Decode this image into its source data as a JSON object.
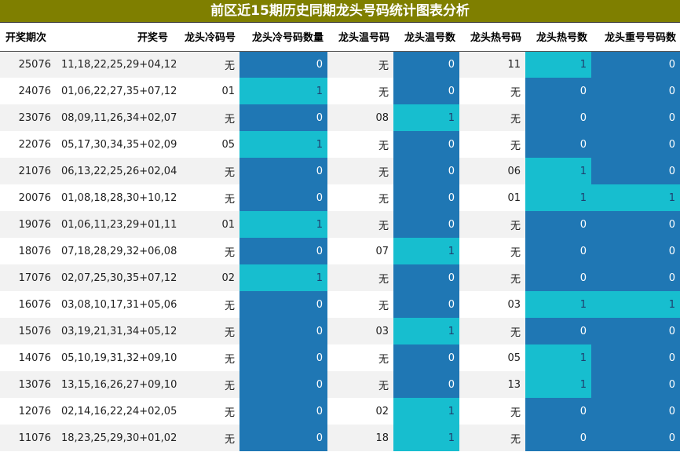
{
  "title": "前区近15期历史同期龙头号码统计图表分析",
  "headers": [
    "开奖期次",
    "开奖号",
    "龙头冷码号",
    "龙头冷号码数量",
    "龙头温号码",
    "龙头温号数",
    "龙头热号码",
    "龙头热号数",
    "龙头重号号码数"
  ],
  "colors": {
    "title_bg": "#7f7f00",
    "zero_cell": "#1f77b4",
    "one_cell": "#17becf"
  },
  "rows": [
    {
      "period": "25076",
      "numbers": "11,18,22,25,29+04,12",
      "cold": "无",
      "cold_count": "0",
      "warm": "无",
      "warm_count": "0",
      "hot": "11",
      "hot_count": "1",
      "repeat_count": "0"
    },
    {
      "period": "24076",
      "numbers": "01,06,22,27,35+07,12",
      "cold": "01",
      "cold_count": "1",
      "warm": "无",
      "warm_count": "0",
      "hot": "无",
      "hot_count": "0",
      "repeat_count": "0"
    },
    {
      "period": "23076",
      "numbers": "08,09,11,26,34+02,07",
      "cold": "无",
      "cold_count": "0",
      "warm": "08",
      "warm_count": "1",
      "hot": "无",
      "hot_count": "0",
      "repeat_count": "0"
    },
    {
      "period": "22076",
      "numbers": "05,17,30,34,35+02,09",
      "cold": "05",
      "cold_count": "1",
      "warm": "无",
      "warm_count": "0",
      "hot": "无",
      "hot_count": "0",
      "repeat_count": "0"
    },
    {
      "period": "21076",
      "numbers": "06,13,22,25,26+02,04",
      "cold": "无",
      "cold_count": "0",
      "warm": "无",
      "warm_count": "0",
      "hot": "06",
      "hot_count": "1",
      "repeat_count": "0"
    },
    {
      "period": "20076",
      "numbers": "01,08,18,28,30+10,12",
      "cold": "无",
      "cold_count": "0",
      "warm": "无",
      "warm_count": "0",
      "hot": "01",
      "hot_count": "1",
      "repeat_count": "1"
    },
    {
      "period": "19076",
      "numbers": "01,06,11,23,29+01,11",
      "cold": "01",
      "cold_count": "1",
      "warm": "无",
      "warm_count": "0",
      "hot": "无",
      "hot_count": "0",
      "repeat_count": "0"
    },
    {
      "period": "18076",
      "numbers": "07,18,28,29,32+06,08",
      "cold": "无",
      "cold_count": "0",
      "warm": "07",
      "warm_count": "1",
      "hot": "无",
      "hot_count": "0",
      "repeat_count": "0"
    },
    {
      "period": "17076",
      "numbers": "02,07,25,30,35+07,12",
      "cold": "02",
      "cold_count": "1",
      "warm": "无",
      "warm_count": "0",
      "hot": "无",
      "hot_count": "0",
      "repeat_count": "0"
    },
    {
      "period": "16076",
      "numbers": "03,08,10,17,31+05,06",
      "cold": "无",
      "cold_count": "0",
      "warm": "无",
      "warm_count": "0",
      "hot": "03",
      "hot_count": "1",
      "repeat_count": "1"
    },
    {
      "period": "15076",
      "numbers": "03,19,21,31,34+05,12",
      "cold": "无",
      "cold_count": "0",
      "warm": "03",
      "warm_count": "1",
      "hot": "无",
      "hot_count": "0",
      "repeat_count": "0"
    },
    {
      "period": "14076",
      "numbers": "05,10,19,31,32+09,10",
      "cold": "无",
      "cold_count": "0",
      "warm": "无",
      "warm_count": "0",
      "hot": "05",
      "hot_count": "1",
      "repeat_count": "0"
    },
    {
      "period": "13076",
      "numbers": "13,15,16,26,27+09,10",
      "cold": "无",
      "cold_count": "0",
      "warm": "无",
      "warm_count": "0",
      "hot": "13",
      "hot_count": "1",
      "repeat_count": "0"
    },
    {
      "period": "12076",
      "numbers": "02,14,16,22,24+02,05",
      "cold": "无",
      "cold_count": "0",
      "warm": "02",
      "warm_count": "1",
      "hot": "无",
      "hot_count": "0",
      "repeat_count": "0"
    },
    {
      "period": "11076",
      "numbers": "18,23,25,29,30+01,02",
      "cold": "无",
      "cold_count": "0",
      "warm": "18",
      "warm_count": "1",
      "hot": "无",
      "hot_count": "0",
      "repeat_count": "0"
    }
  ]
}
